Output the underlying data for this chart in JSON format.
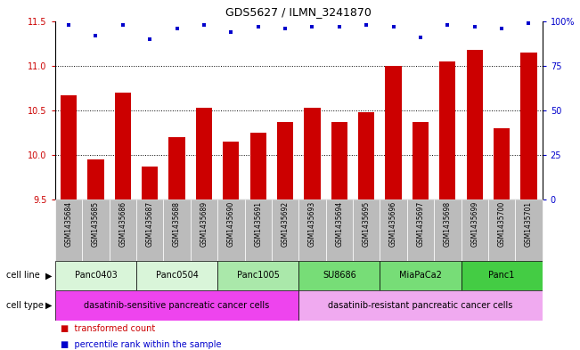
{
  "title": "GDS5627 / ILMN_3241870",
  "samples": [
    "GSM1435684",
    "GSM1435685",
    "GSM1435686",
    "GSM1435687",
    "GSM1435688",
    "GSM1435689",
    "GSM1435690",
    "GSM1435691",
    "GSM1435692",
    "GSM1435693",
    "GSM1435694",
    "GSM1435695",
    "GSM1435696",
    "GSM1435697",
    "GSM1435698",
    "GSM1435699",
    "GSM1435700",
    "GSM1435701"
  ],
  "bar_values": [
    10.67,
    9.95,
    10.7,
    9.87,
    10.2,
    10.53,
    10.15,
    10.25,
    10.37,
    10.53,
    10.37,
    10.48,
    11.0,
    10.37,
    11.05,
    11.18,
    10.3,
    11.15
  ],
  "percentile_values": [
    98,
    92,
    98,
    90,
    96,
    98,
    94,
    97,
    96,
    97,
    97,
    98,
    97,
    91,
    98,
    97,
    96,
    99
  ],
  "ylim_left": [
    9.5,
    11.5
  ],
  "ylim_right": [
    0,
    100
  ],
  "yticks_left": [
    9.5,
    10.0,
    10.5,
    11.0,
    11.5
  ],
  "yticks_right": [
    0,
    25,
    50,
    75,
    100
  ],
  "bar_color": "#cc0000",
  "dot_color": "#0000cc",
  "cell_lines": [
    {
      "name": "Panc0403",
      "start": 0,
      "end": 3,
      "color": "#d9f5d9"
    },
    {
      "name": "Panc0504",
      "start": 3,
      "end": 6,
      "color": "#d9f5d9"
    },
    {
      "name": "Panc1005",
      "start": 6,
      "end": 9,
      "color": "#aae8aa"
    },
    {
      "name": "SU8686",
      "start": 9,
      "end": 12,
      "color": "#77dd77"
    },
    {
      "name": "MiaPaCa2",
      "start": 12,
      "end": 15,
      "color": "#77dd77"
    },
    {
      "name": "Panc1",
      "start": 15,
      "end": 18,
      "color": "#44cc44"
    }
  ],
  "cell_types": [
    {
      "name": "dasatinib-sensitive pancreatic cancer cells",
      "start": 0,
      "end": 9,
      "color": "#ee44ee"
    },
    {
      "name": "dasatinib-resistant pancreatic cancer cells",
      "start": 9,
      "end": 18,
      "color": "#f0aaf0"
    }
  ],
  "legend_bar_label": "transformed count",
  "legend_dot_label": "percentile rank within the sample",
  "cell_line_label": "cell line",
  "cell_type_label": "cell type",
  "tick_bg_color": "#bbbbbb",
  "gridline_ticks": [
    10.0,
    10.5,
    11.0
  ]
}
